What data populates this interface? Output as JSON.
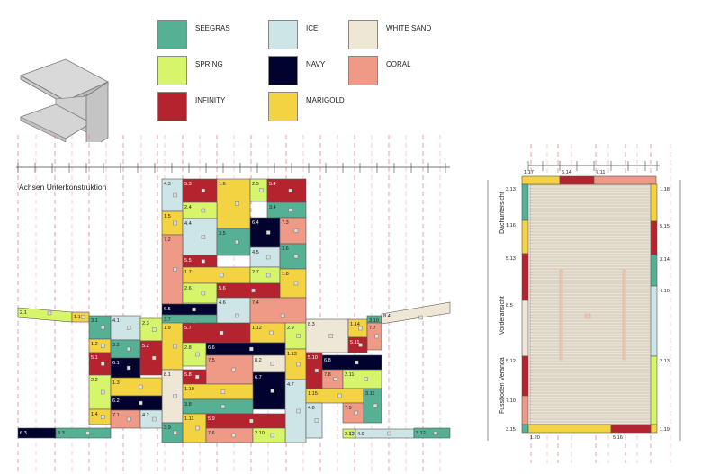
{
  "palette": {
    "SEEGRAS": "#55b094",
    "ICE": "#cde5e6",
    "WHITE SAND": "#efe7d6",
    "SPRING": "#d6f56a",
    "NAVY": "#02022e",
    "CORAL": "#ef9a86",
    "INFINITY": "#b5242e",
    "MARIGOLD": "#f4d342"
  },
  "legend": [
    {
      "label": "SEEGRAS",
      "color": "SEEGRAS"
    },
    {
      "label": "ICE",
      "color": "ICE"
    },
    {
      "label": "WHITE SAND",
      "color": "WHITE SAND"
    },
    {
      "label": "SPRING",
      "color": "SPRING"
    },
    {
      "label": "NAVY",
      "color": "NAVY"
    },
    {
      "label": "CORAL",
      "color": "CORAL"
    },
    {
      "label": "INFINITY",
      "color": "INFINITY"
    },
    {
      "label": "MARIGOLD",
      "color": "MARIGOLD"
    }
  ],
  "elevation": {
    "caption": "Achsen Unterkonstruktion",
    "panels": [
      {
        "id": "4.3",
        "c": "ICE"
      },
      {
        "id": "5.3",
        "c": "INFINITY"
      },
      {
        "id": "1.6",
        "c": "MARIGOLD"
      },
      {
        "id": "2.5",
        "c": "SPRING"
      },
      {
        "id": "5.4",
        "c": "INFINITY"
      },
      {
        "id": "2.4",
        "c": "SPRING"
      },
      {
        "id": "3.4",
        "c": "SEEGRAS"
      },
      {
        "id": "1.5",
        "c": "MARIGOLD"
      },
      {
        "id": "4.4",
        "c": "ICE"
      },
      {
        "id": "6.4",
        "c": "NAVY"
      },
      {
        "id": "7.3",
        "c": "CORAL"
      },
      {
        "id": "3.5",
        "c": "SEEGRAS"
      },
      {
        "id": "7.2",
        "c": "CORAL"
      },
      {
        "id": "5.5",
        "c": "INFINITY"
      },
      {
        "id": "4.5",
        "c": "ICE"
      },
      {
        "id": "3.6",
        "c": "SEEGRAS"
      },
      {
        "id": "1.7",
        "c": "MARIGOLD"
      },
      {
        "id": "2.7",
        "c": "SPRING"
      },
      {
        "id": "1.8",
        "c": "MARIGOLD"
      },
      {
        "id": "2.6",
        "c": "SPRING"
      },
      {
        "id": "5.6",
        "c": "INFINITY"
      },
      {
        "id": "6.5",
        "c": "NAVY"
      },
      {
        "id": "3.7",
        "c": "SEEGRAS"
      },
      {
        "id": "4.6",
        "c": "ICE"
      },
      {
        "id": "7.4",
        "c": "CORAL"
      },
      {
        "id": "1.9",
        "c": "MARIGOLD"
      },
      {
        "id": "5.7",
        "c": "INFINITY"
      },
      {
        "id": "1.12",
        "c": "MARIGOLD"
      },
      {
        "id": "2.9",
        "c": "SPRING"
      },
      {
        "id": "2.8",
        "c": "SPRING"
      },
      {
        "id": "6.6",
        "c": "NAVY"
      },
      {
        "id": "1.13",
        "c": "MARIGOLD"
      },
      {
        "id": "7.5",
        "c": "CORAL"
      },
      {
        "id": "8.2",
        "c": "WHITE SAND"
      },
      {
        "id": "8.1",
        "c": "WHITE SAND"
      },
      {
        "id": "5.8",
        "c": "INFINITY"
      },
      {
        "id": "6.7",
        "c": "NAVY"
      },
      {
        "id": "1.10",
        "c": "MARIGOLD"
      },
      {
        "id": "4.7",
        "c": "ICE"
      },
      {
        "id": "3.8",
        "c": "SEEGRAS"
      },
      {
        "id": "1.11",
        "c": "MARIGOLD"
      },
      {
        "id": "5.9",
        "c": "INFINITY"
      },
      {
        "id": "3.9",
        "c": "SEEGRAS"
      },
      {
        "id": "7.6",
        "c": "CORAL"
      },
      {
        "id": "2.10",
        "c": "SPRING"
      },
      {
        "id": "2.1",
        "c": "SPRING"
      },
      {
        "id": "1.1",
        "c": "MARIGOLD"
      },
      {
        "id": "3.1",
        "c": "SEEGRAS"
      },
      {
        "id": "4.1",
        "c": "ICE"
      },
      {
        "id": "2.3",
        "c": "SPRING"
      },
      {
        "id": "1.2",
        "c": "MARIGOLD"
      },
      {
        "id": "3.2",
        "c": "SEEGRAS"
      },
      {
        "id": "5.1",
        "c": "INFINITY"
      },
      {
        "id": "6.1",
        "c": "NAVY"
      },
      {
        "id": "5.2",
        "c": "INFINITY"
      },
      {
        "id": "2.2",
        "c": "SPRING"
      },
      {
        "id": "1.3",
        "c": "MARIGOLD"
      },
      {
        "id": "6.2",
        "c": "NAVY"
      },
      {
        "id": "1.4",
        "c": "MARIGOLD"
      },
      {
        "id": "7.1",
        "c": "CORAL"
      },
      {
        "id": "4.2",
        "c": "ICE"
      },
      {
        "id": "6.3",
        "c": "NAVY"
      },
      {
        "id": "3.3",
        "c": "SEEGRAS"
      },
      {
        "id": "8.3",
        "c": "WHITE SAND"
      },
      {
        "id": "1.14",
        "c": "MARIGOLD"
      },
      {
        "id": "3.10",
        "c": "SEEGRAS"
      },
      {
        "id": "8.4",
        "c": "WHITE SAND"
      },
      {
        "id": "7.7",
        "c": "CORAL"
      },
      {
        "id": "5.11",
        "c": "INFINITY"
      },
      {
        "id": "5.10",
        "c": "INFINITY"
      },
      {
        "id": "6.8",
        "c": "NAVY"
      },
      {
        "id": "7.8",
        "c": "CORAL"
      },
      {
        "id": "2.11",
        "c": "SPRING"
      },
      {
        "id": "1.15",
        "c": "MARIGOLD"
      },
      {
        "id": "3.11",
        "c": "SEEGRAS"
      },
      {
        "id": "4.8",
        "c": "ICE"
      },
      {
        "id": "7.9",
        "c": "CORAL"
      },
      {
        "id": "2.12",
        "c": "SPRING"
      },
      {
        "id": "4.9",
        "c": "ICE"
      },
      {
        "id": "3.12",
        "c": "SEEGRAS"
      }
    ]
  },
  "plan": {
    "side_labels": [
      "Dachuntersicht",
      "Vorderansicht",
      "Fussboden Veranda"
    ],
    "top": [
      {
        "id": "1.17",
        "c": "MARIGOLD"
      },
      {
        "id": "5.14",
        "c": "INFINITY"
      },
      {
        "id": "7.11",
        "c": "CORAL"
      }
    ],
    "left": [
      {
        "id": "3.13",
        "c": "SEEGRAS"
      },
      {
        "id": "1.16",
        "c": "MARIGOLD"
      },
      {
        "id": "5.13",
        "c": "INFINITY"
      },
      {
        "id": "8.5",
        "c": "WHITE SAND"
      },
      {
        "id": "5.12",
        "c": "INFINITY"
      },
      {
        "id": "7.10",
        "c": "CORAL"
      },
      {
        "id": "3.15",
        "c": "SEEGRAS"
      }
    ],
    "right": [
      {
        "id": "1.18",
        "c": "MARIGOLD"
      },
      {
        "id": "5.15",
        "c": "INFINITY"
      },
      {
        "id": "3.14",
        "c": "SEEGRAS"
      },
      {
        "id": "4.10",
        "c": "ICE"
      },
      {
        "id": "2.13",
        "c": "SPRING"
      },
      {
        "id": "1.19",
        "c": "MARIGOLD"
      }
    ],
    "bottom": [
      {
        "id": "1.20",
        "c": "MARIGOLD"
      },
      {
        "id": "5.16",
        "c": "INFINITY"
      }
    ]
  }
}
